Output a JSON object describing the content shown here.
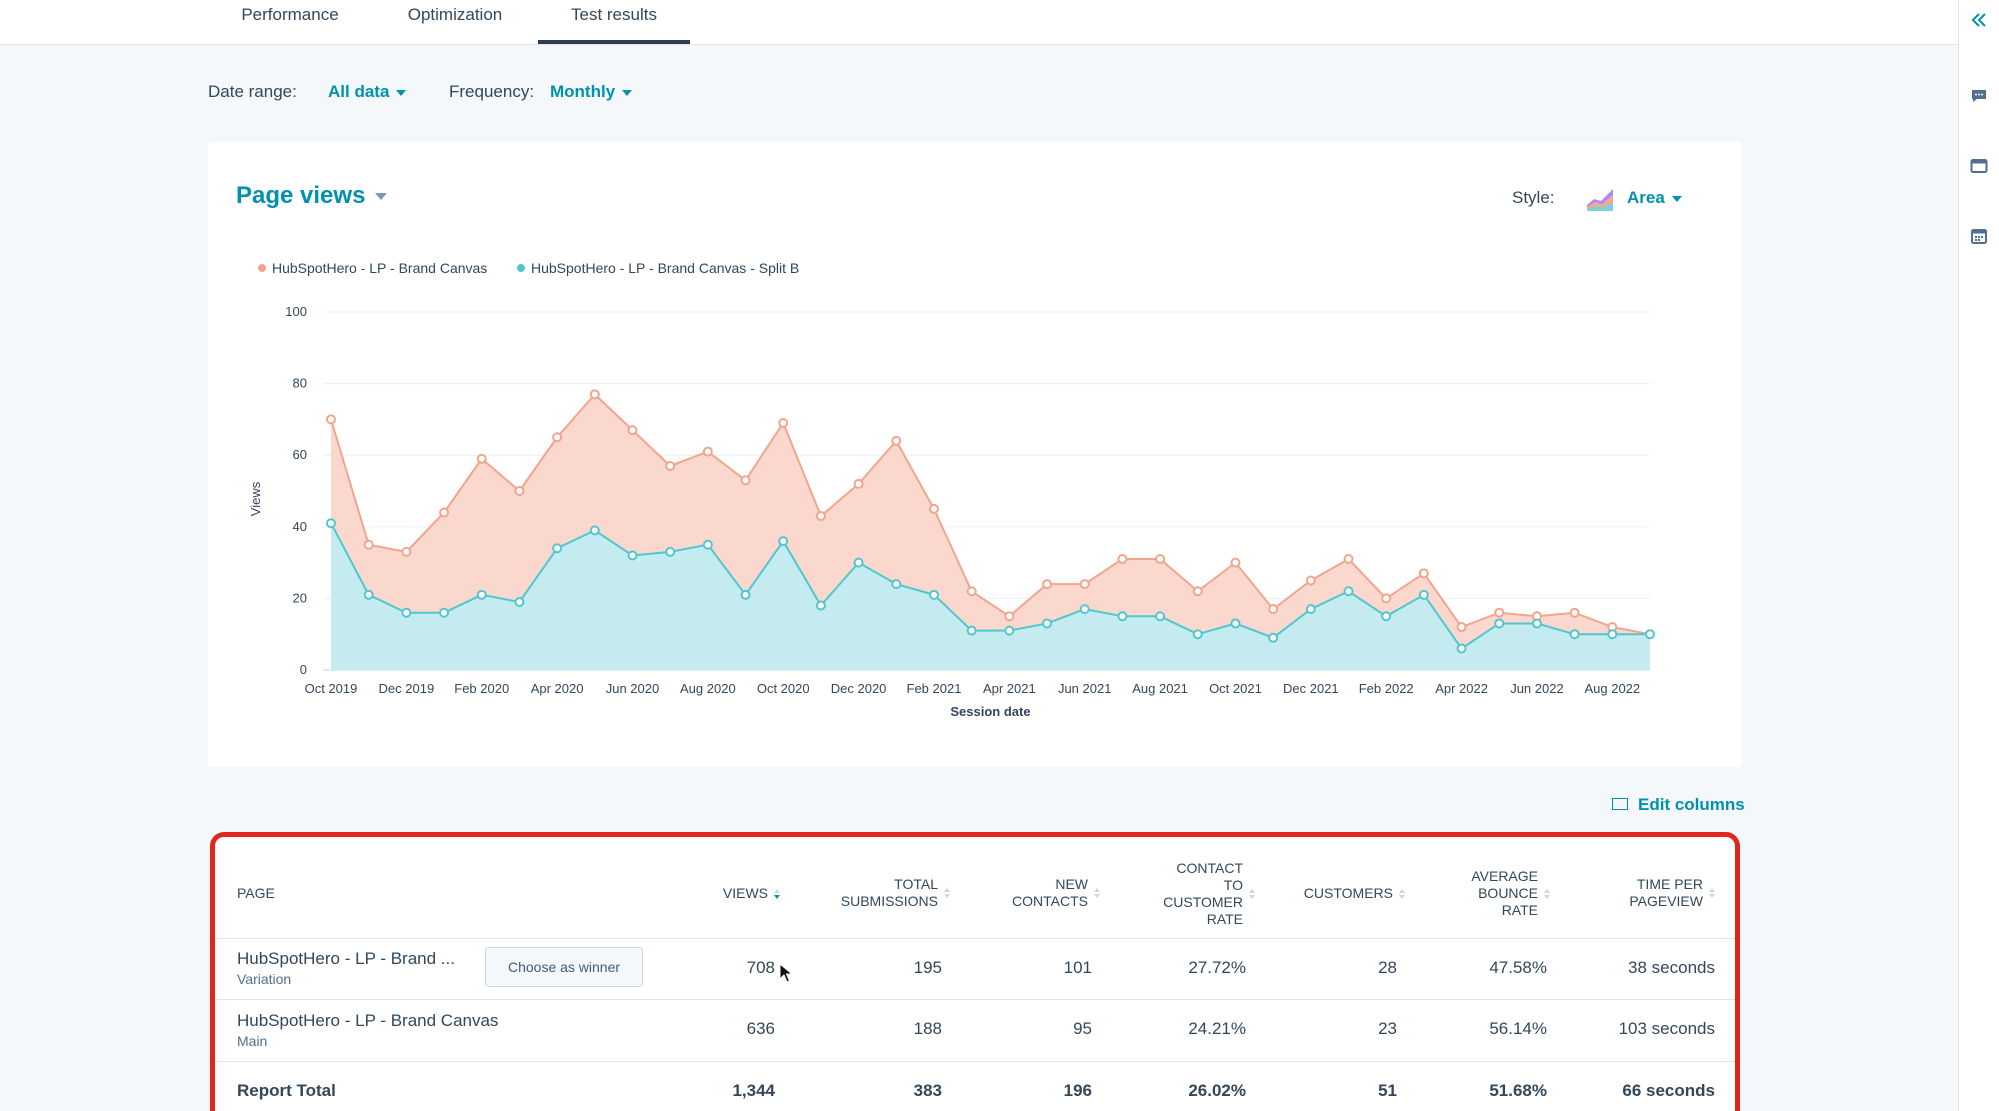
{
  "tabs": [
    {
      "label": "Performance",
      "active": false
    },
    {
      "label": "Optimization",
      "active": false
    },
    {
      "label": "Test results",
      "active": true
    }
  ],
  "filters": {
    "date_range_label": "Date range:",
    "date_range_value": "All data",
    "frequency_label": "Frequency:",
    "frequency_value": "Monthly"
  },
  "chart_card": {
    "title": "Page views",
    "style_label": "Style:",
    "style_value": "Area"
  },
  "chart_data": {
    "type": "area",
    "title": "Page views",
    "xlabel": "Session date",
    "ylabel": "Views",
    "ylim": [
      0,
      100
    ],
    "yticks": [
      0,
      20,
      40,
      60,
      80,
      100
    ],
    "grid": true,
    "legend_position": "top-left",
    "x": [
      "Oct 2019",
      "Nov 2019",
      "Dec 2019",
      "Jan 2020",
      "Feb 2020",
      "Mar 2020",
      "Apr 2020",
      "May 2020",
      "Jun 2020",
      "Jul 2020",
      "Aug 2020",
      "Sep 2020",
      "Oct 2020",
      "Nov 2020",
      "Dec 2020",
      "Jan 2021",
      "Feb 2021",
      "Mar 2021",
      "Apr 2021",
      "May 2021",
      "Jun 2021",
      "Jul 2021",
      "Aug 2021",
      "Sep 2021",
      "Oct 2021",
      "Nov 2021",
      "Dec 2021",
      "Jan 2022",
      "Feb 2022",
      "Mar 2022",
      "Apr 2022",
      "May 2022",
      "Jun 2022",
      "Jul 2022",
      "Aug 2022",
      "Sep 2022"
    ],
    "tick_labels": [
      "Oct 2019",
      "Dec 2019",
      "Feb 2020",
      "Apr 2020",
      "Jun 2020",
      "Aug 2020",
      "Oct 2020",
      "Dec 2020",
      "Feb 2021",
      "Apr 2021",
      "Jun 2021",
      "Aug 2021",
      "Oct 2021",
      "Dec 2021",
      "Feb 2022",
      "Apr 2022",
      "Jun 2022",
      "Aug 2022"
    ],
    "series": [
      {
        "name": "HubSpotHero - LP - Brand Canvas",
        "color": "#f2a58e",
        "fill": "#fad8cd",
        "values": [
          70,
          35,
          33,
          44,
          59,
          50,
          65,
          77,
          67,
          57,
          61,
          53,
          69,
          43,
          52,
          64,
          45,
          22,
          15,
          24,
          24,
          31,
          31,
          22,
          30,
          17,
          25,
          31,
          20,
          27,
          12,
          16,
          15,
          16,
          12,
          10
        ]
      },
      {
        "name": "HubSpotHero - LP - Brand Canvas - Split B",
        "color": "#51c6cf",
        "fill": "#c4ecf0",
        "values": [
          41,
          21,
          16,
          16,
          21,
          19,
          34,
          39,
          32,
          33,
          35,
          21,
          36,
          18,
          30,
          24,
          21,
          11,
          11,
          13,
          17,
          15,
          15,
          10,
          13,
          9,
          17,
          22,
          15,
          21,
          6,
          13,
          13,
          10,
          10,
          10
        ]
      }
    ]
  },
  "edit_columns_label": "Edit columns",
  "table": {
    "headers": {
      "page": "PAGE",
      "views": "VIEWS",
      "total_submissions": [
        "TOTAL",
        "SUBMISSIONS"
      ],
      "new_contacts": [
        "NEW",
        "CONTACTS"
      ],
      "contact_to_customer_rate": [
        "CONTACT",
        "TO",
        "CUSTOMER",
        "RATE"
      ],
      "customers": "CUSTOMERS",
      "average_bounce_rate": [
        "AVERAGE",
        "BOUNCE",
        "RATE"
      ],
      "time_per_pageview": [
        "TIME PER",
        "PAGEVIEW"
      ]
    },
    "rows": [
      {
        "page": "HubSpotHero - LP - Brand ...",
        "sub": "Variation",
        "button": "Choose as winner",
        "views": "708",
        "total_submissions": "195",
        "new_contacts": "101",
        "contact_to_customer_rate": "27.72%",
        "customers": "28",
        "average_bounce_rate": "47.58%",
        "time_per_pageview": "38 seconds"
      },
      {
        "page": "HubSpotHero - LP - Brand Canvas",
        "sub": "Main",
        "views": "636",
        "total_submissions": "188",
        "new_contacts": "95",
        "contact_to_customer_rate": "24.21%",
        "customers": "23",
        "average_bounce_rate": "56.14%",
        "time_per_pageview": "103 seconds"
      }
    ],
    "total": {
      "label": "Report Total",
      "views": "1,344",
      "total_submissions": "383",
      "new_contacts": "196",
      "contact_to_customer_rate": "26.02%",
      "customers": "51",
      "average_bounce_rate": "51.68%",
      "time_per_pageview": "66 seconds"
    }
  },
  "icons": {
    "collapse": "chevrons-left-icon",
    "chat": "chat-icon",
    "window": "window-icon",
    "calendar": "calendar-icon",
    "style": "area-chart-style-icon",
    "edit_columns": "columns-icon",
    "cursor": "mouse-pointer-icon"
  },
  "colors": {
    "accent": "#0091ae",
    "highlight_border": "#e3261b"
  }
}
